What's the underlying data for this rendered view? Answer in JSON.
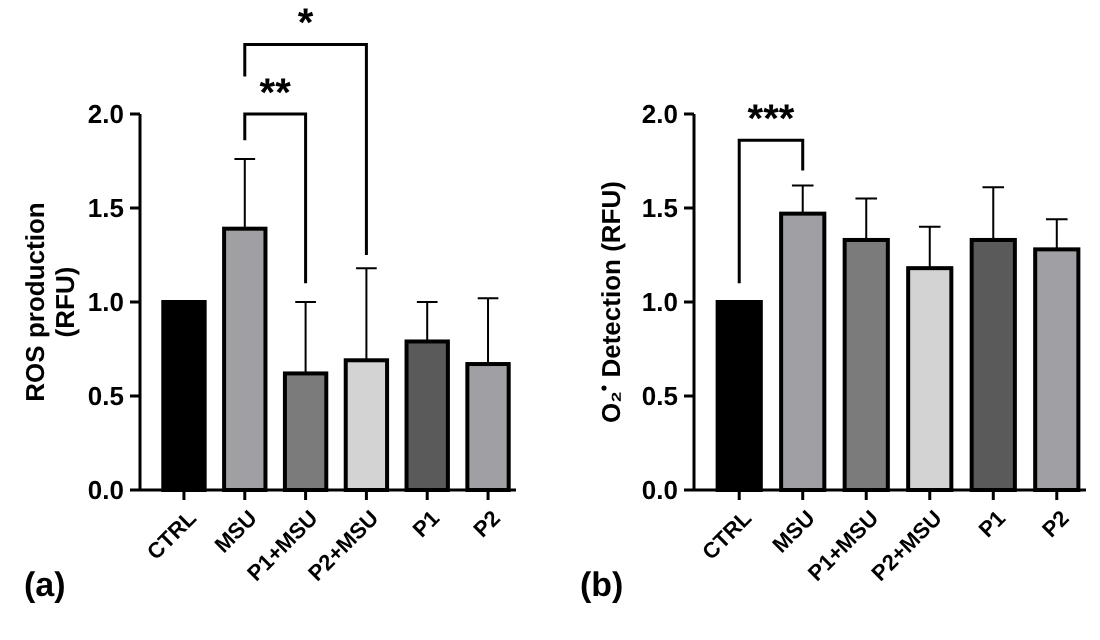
{
  "chart_data": [
    {
      "type": "bar",
      "ylabel": "ROS production (RFU)",
      "categories": [
        "CTRL",
        "MSU",
        "P1+MSU",
        "P2+MSU",
        "P1",
        "P2"
      ],
      "values": [
        1.0,
        1.39,
        0.62,
        0.69,
        0.79,
        0.67
      ],
      "colors": [
        "#000000",
        "#a0a0a4",
        "#7b7b7b",
        "#d3d3d3",
        "#5a5a5a",
        "#a0a0a4"
      ],
      "errors": [
        null,
        [
          1.39,
          1.76
        ],
        [
          0.62,
          1.0
        ],
        [
          0.69,
          1.18
        ],
        [
          0.79,
          1.0
        ],
        [
          0.67,
          1.02
        ]
      ],
      "ylim": [
        0,
        2.0
      ],
      "yticks": [
        {
          "value": 0,
          "label": "0.0"
        },
        {
          "value": 0.5,
          "label": "0.5"
        },
        {
          "value": 1,
          "label": "1.0"
        },
        {
          "value": 1.5,
          "label": "1.5"
        },
        {
          "value": 2,
          "label": "2.0"
        }
      ],
      "annotations": [
        "**",
        "*",
        "(a)"
      ]
    },
    {
      "type": "bar",
      "ylabel": "O₂$^{•}$ Detection (RFU)",
      "categories": [
        "CTRL",
        "MSU",
        "P1+MSU",
        "P2+MSU",
        "P1",
        "P2"
      ],
      "values": [
        1.0,
        1.47,
        1.33,
        1.18,
        1.33,
        1.28
      ],
      "colors": [
        "#000000",
        "#a0a0a4",
        "#7b7b7b",
        "#d3d3d3",
        "#5a5a5a",
        "#a0a0a4"
      ],
      "errors": [
        null,
        [
          1.47,
          1.62
        ],
        [
          1.33,
          1.55
        ],
        [
          1.18,
          1.4
        ],
        [
          1.33,
          1.61
        ],
        [
          1.28,
          1.44
        ]
      ],
      "ylim": [
        0,
        2.0
      ],
      "yticks": [
        {
          "value": 0,
          "label": "0.0"
        },
        {
          "value": 0.5,
          "label": "0.5"
        },
        {
          "value": 1,
          "label": "1.0"
        },
        {
          "value": 1.5,
          "label": "1.5"
        },
        {
          "value": 2,
          "label": "2.0"
        }
      ],
      "annotations": [
        "***",
        "(b)"
      ]
    }
  ]
}
